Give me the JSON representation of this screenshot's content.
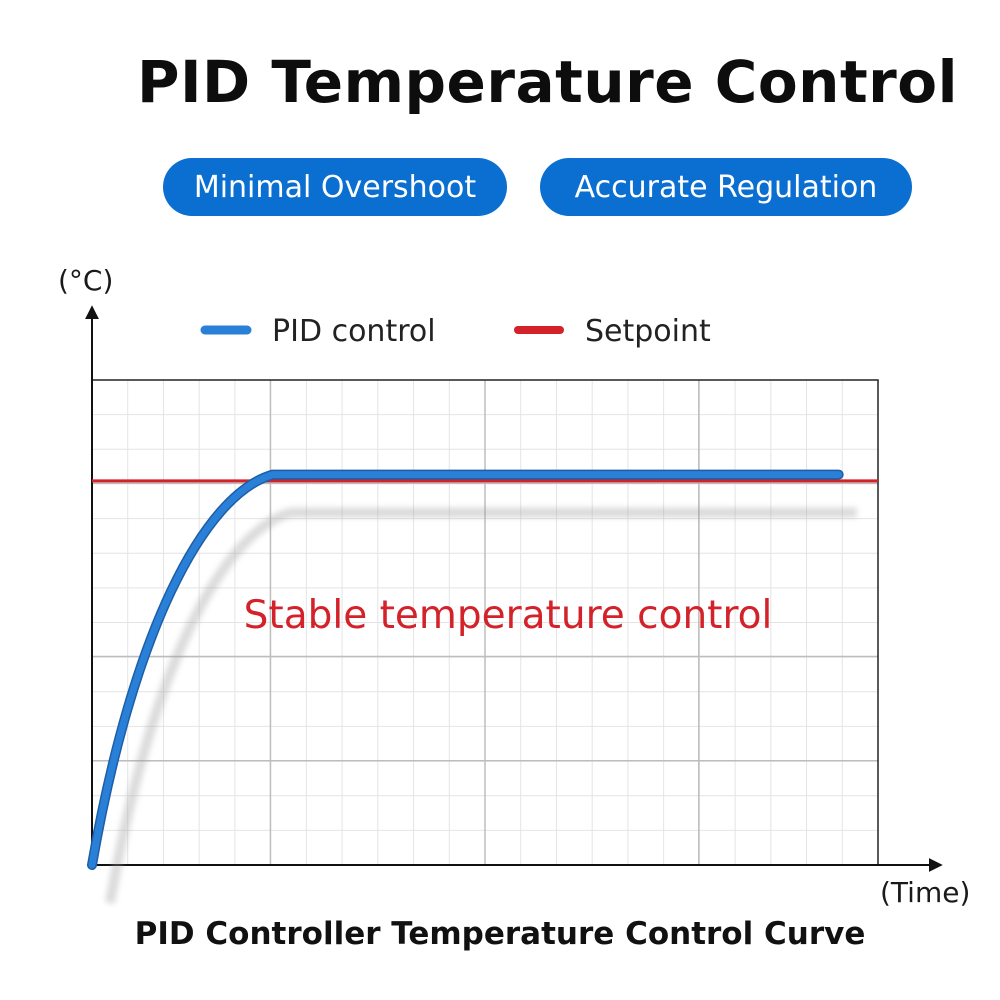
{
  "header": {
    "title": "PID Temperature Control",
    "badges": [
      "Minimal Overshoot",
      "Accurate Regulation"
    ],
    "badge_color": "#0a6fd0"
  },
  "chart_data": {
    "type": "line",
    "title": "",
    "caption": "PID Controller Temperature Control Curve",
    "ylabel": "(°C)",
    "xlabel": "(Time)",
    "annotation": "Stable temperature control",
    "annotation_color": "#d3222a",
    "grid": true,
    "legend_position": "top",
    "xlim": [
      0,
      100
    ],
    "ylim": [
      0,
      100
    ],
    "series": [
      {
        "name": "PID control",
        "color": "#2a7fd6",
        "x": [
          0,
          3,
          6,
          10,
          14,
          18,
          21,
          23,
          100
        ],
        "y": [
          0,
          20,
          38,
          57,
          72,
          83,
          89,
          80.5,
          80.5
        ]
      },
      {
        "name": "Setpoint",
        "color": "#d3222a",
        "x": [
          0,
          100
        ],
        "y": [
          79.2,
          79.2
        ]
      }
    ]
  }
}
